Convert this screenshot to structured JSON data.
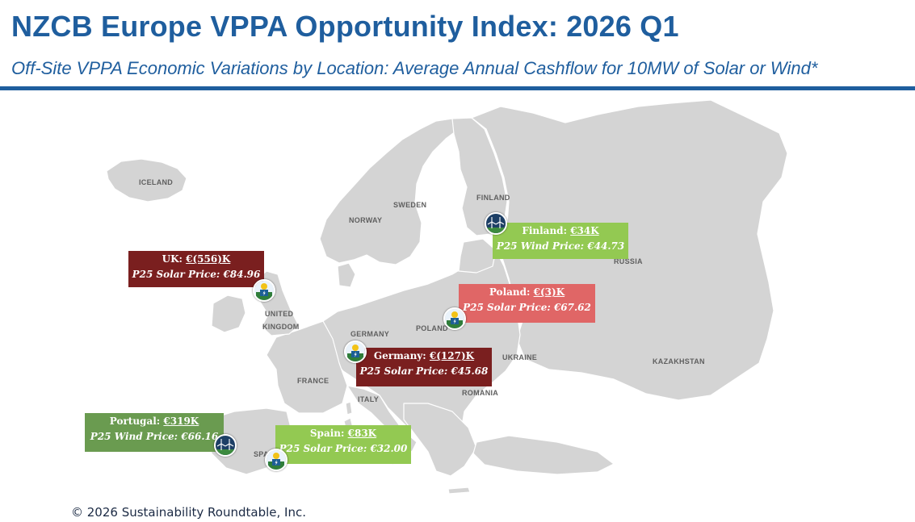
{
  "header": {
    "title": "NZCB Europe VPPA Opportunity Index: 2026 Q1",
    "subtitle": "Off-Site VPPA Economic Variations by Location: Average Annual Cashflow for 10MW of Solar or Wind*"
  },
  "colors": {
    "brand_blue": "#1f5e9e",
    "land_gray": "#d4d4d4",
    "dark_red": "#7a1f1f",
    "light_red": "#e06666",
    "light_green": "#93c952",
    "olive_green": "#6a9b50"
  },
  "map_labels": {
    "iceland": "ICELAND",
    "norway": "NORWAY",
    "sweden": "SWEDEN",
    "finland": "FINLAND",
    "russia": "RUSSIA",
    "united": "UNITED",
    "kingdom": "KINGDOM",
    "germany": "GERMANY",
    "poland": "POLAND",
    "ukraine": "UKRAINE",
    "kazakhstan": "KAZAKHSTAN",
    "france": "FRANCE",
    "italy": "ITALY",
    "romania": "ROMANIA",
    "spain": "SPAIN"
  },
  "callouts": {
    "uk": {
      "name": "UK:",
      "value": "€(556)K",
      "line": "P25 Solar Price: €84.96",
      "type_icon": "solar-icon"
    },
    "finland": {
      "name": "Finland:",
      "value": "€34K",
      "line": "P25 Wind Price: €44.73",
      "type_icon": "wind-icon"
    },
    "poland": {
      "name": "Poland:",
      "value": "€(3)K",
      "line": "P25 Solar Price: €67.62",
      "type_icon": "solar-icon"
    },
    "germany": {
      "name": "Germany:",
      "value": "€(127)K",
      "line": "P25 Solar Price: €45.68",
      "type_icon": "solar-icon"
    },
    "portugal": {
      "name": "Portugal:",
      "value": "€319K",
      "line": "P25 Wind Price: €66.16",
      "type_icon": "wind-icon"
    },
    "spain": {
      "name": "Spain:",
      "value": "€83K",
      "line": "P25 Solar Price: €32.00",
      "type_icon": "solar-icon"
    }
  },
  "footer": {
    "copyright": "© 2026 Sustainability Roundtable, Inc."
  }
}
